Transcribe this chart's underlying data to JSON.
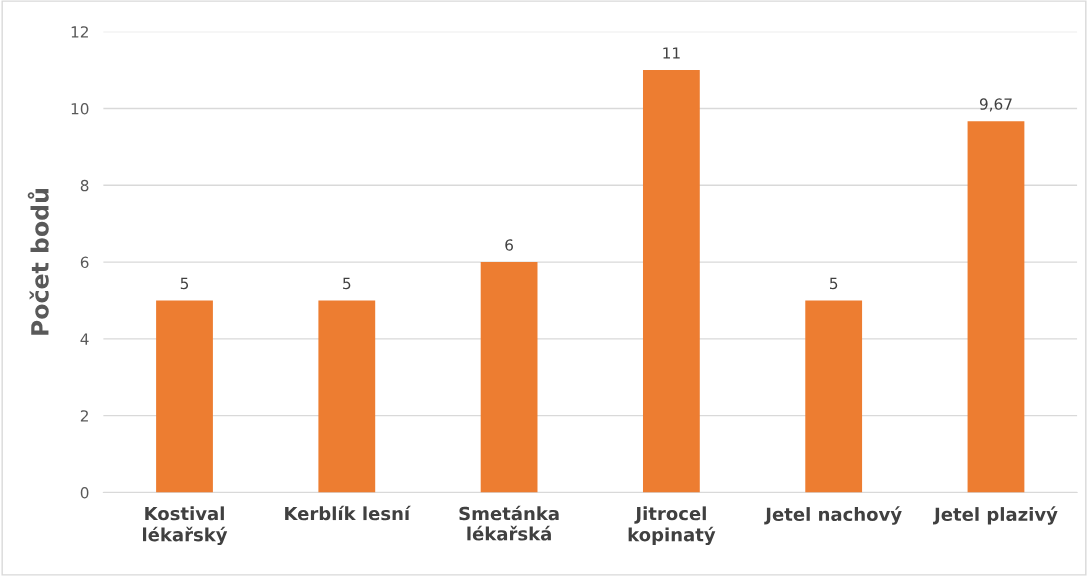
{
  "chart_data": {
    "type": "bar",
    "ylabel": "Počet bodů",
    "categories": [
      "Kostival\nlékařský",
      "Kerblík lesní",
      "Smetánka\nlékařská",
      "Jitrocel\nkopinatý",
      "Jetel nachový",
      "Jetel plazivý"
    ],
    "values": [
      5,
      5,
      6,
      11,
      5,
      9.67
    ],
    "value_labels": [
      "5",
      "5",
      "6",
      "11",
      "5",
      "9,67"
    ],
    "color": "#ed7d31",
    "ylim": [
      0,
      12
    ],
    "yticks": [
      0,
      2,
      4,
      6,
      8,
      10,
      12
    ],
    "grid": "y",
    "legend": false
  }
}
